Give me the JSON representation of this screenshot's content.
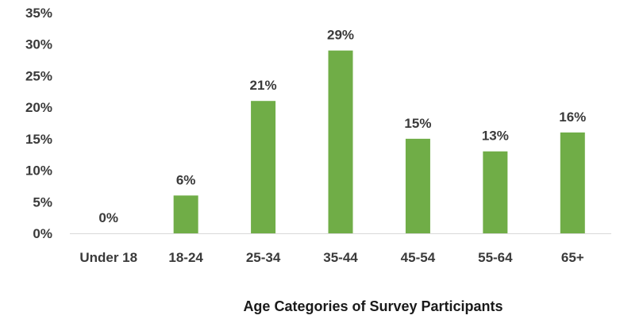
{
  "chart_data": {
    "type": "bar",
    "categories": [
      "Under 18",
      "18-24",
      "25-34",
      "35-44",
      "45-54",
      "55-64",
      "65+"
    ],
    "values": [
      0,
      6,
      21,
      29,
      15,
      13,
      16
    ],
    "data_labels": [
      "0%",
      "6%",
      "21%",
      "29%",
      "15%",
      "13%",
      "16%"
    ],
    "title": "",
    "xlabel": "Age Categories of Survey Participants",
    "ylabel": "",
    "ylim": [
      0,
      35
    ],
    "yticks": [
      0,
      5,
      10,
      15,
      20,
      25,
      30,
      35
    ],
    "ytick_labels": [
      "0%",
      "5%",
      "10%",
      "15%",
      "20%",
      "25%",
      "30%",
      "35%"
    ],
    "grid": false,
    "legend": "none",
    "bar_color": "#70ad47"
  }
}
